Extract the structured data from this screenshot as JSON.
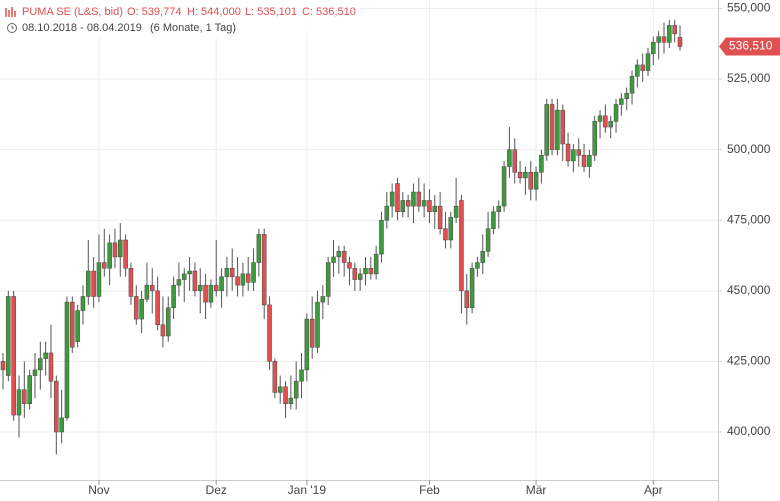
{
  "header": {
    "name": "PUMA SE (L&S, bid)",
    "open": "O: 539,774",
    "high": "H: 544,000",
    "low": "L: 535,101",
    "close": "C: 536,510",
    "range": "08.10.2018 - 08.04.2019",
    "period": "(6 Monate, 1 Tag)"
  },
  "chart_data": {
    "type": "candlestick",
    "up_color": "#3d9a3d",
    "down_color": "#e05050",
    "grid": true,
    "ylim": [
      383000,
      553000
    ],
    "yticks": [
      {
        "value": 400000,
        "label": "400,000"
      },
      {
        "value": 425000,
        "label": "425,000"
      },
      {
        "value": 450000,
        "label": "450,000"
      },
      {
        "value": 475000,
        "label": "475,000"
      },
      {
        "value": 500000,
        "label": "500,000"
      },
      {
        "value": 525000,
        "label": "525,000"
      },
      {
        "value": 550000,
        "label": "550,000"
      }
    ],
    "xticks": [
      {
        "value": 18,
        "label": "Nov"
      },
      {
        "value": 40,
        "label": "Dez"
      },
      {
        "value": 57,
        "label": "Jan '19"
      },
      {
        "value": 80,
        "label": "Feb"
      },
      {
        "value": 100,
        "label": "Mär"
      },
      {
        "value": 122,
        "label": "Apr"
      }
    ],
    "last_price": {
      "value": 536510,
      "label": "536,510"
    },
    "ohlc": [
      [
        425000,
        428000,
        415000,
        422000
      ],
      [
        420000,
        450000,
        418000,
        448000
      ],
      [
        448000,
        450000,
        404000,
        406000
      ],
      [
        406000,
        420000,
        398000,
        415000
      ],
      [
        415000,
        425000,
        405000,
        410000
      ],
      [
        410000,
        422000,
        408000,
        420000
      ],
      [
        420000,
        428000,
        412000,
        422000
      ],
      [
        422000,
        432000,
        415000,
        426000
      ],
      [
        426000,
        432000,
        420000,
        428000
      ],
      [
        428000,
        438000,
        412000,
        418000
      ],
      [
        418000,
        420000,
        392000,
        400000
      ],
      [
        400000,
        415000,
        396000,
        405000
      ],
      [
        405000,
        448000,
        404000,
        446000
      ],
      [
        446000,
        448000,
        428000,
        430000
      ],
      [
        432000,
        445000,
        430000,
        443000
      ],
      [
        443000,
        452000,
        438000,
        448000
      ],
      [
        448000,
        468000,
        445000,
        457000
      ],
      [
        457000,
        462000,
        444000,
        448000
      ],
      [
        448000,
        470000,
        446000,
        460000
      ],
      [
        460000,
        472000,
        455000,
        458000
      ],
      [
        458000,
        470000,
        452000,
        467000
      ],
      [
        467000,
        472000,
        458000,
        462000
      ],
      [
        462000,
        474000,
        455000,
        468000
      ],
      [
        468000,
        470000,
        455000,
        458000
      ],
      [
        458000,
        460000,
        445000,
        448000
      ],
      [
        448000,
        452000,
        438000,
        440000
      ],
      [
        440000,
        450000,
        435000,
        447000
      ],
      [
        447000,
        460000,
        446000,
        452000
      ],
      [
        452000,
        458000,
        442000,
        450000
      ],
      [
        450000,
        455000,
        436000,
        438000
      ],
      [
        438000,
        448000,
        430000,
        434000
      ],
      [
        434000,
        448000,
        432000,
        444000
      ],
      [
        444000,
        455000,
        440000,
        452000
      ],
      [
        452000,
        460000,
        448000,
        454000
      ],
      [
        454000,
        458000,
        446000,
        456000
      ],
      [
        456000,
        462000,
        450000,
        457000
      ],
      [
        457000,
        460000,
        448000,
        450000
      ],
      [
        450000,
        458000,
        442000,
        452000
      ],
      [
        452000,
        456000,
        440000,
        446000
      ],
      [
        446000,
        454000,
        444000,
        452000
      ],
      [
        452000,
        468000,
        448000,
        450000
      ],
      [
        450000,
        458000,
        444000,
        455000
      ],
      [
        455000,
        462000,
        448000,
        458000
      ],
      [
        458000,
        465000,
        450000,
        455000
      ],
      [
        455000,
        462000,
        448000,
        452000
      ],
      [
        452000,
        460000,
        448000,
        456000
      ],
      [
        456000,
        462000,
        450000,
        453000
      ],
      [
        453000,
        465000,
        450000,
        460000
      ],
      [
        460000,
        472000,
        455000,
        470000
      ],
      [
        470000,
        472000,
        440000,
        445000
      ],
      [
        445000,
        448000,
        422000,
        425000
      ],
      [
        425000,
        426000,
        412000,
        414000
      ],
      [
        414000,
        420000,
        410000,
        416000
      ],
      [
        416000,
        418000,
        405000,
        410000
      ],
      [
        410000,
        420000,
        408000,
        412000
      ],
      [
        412000,
        425000,
        408000,
        418000
      ],
      [
        418000,
        428000,
        412000,
        422000
      ],
      [
        422000,
        442000,
        418000,
        440000
      ],
      [
        440000,
        448000,
        426000,
        430000
      ],
      [
        430000,
        450000,
        428000,
        446000
      ],
      [
        446000,
        452000,
        440000,
        448000
      ],
      [
        448000,
        462000,
        445000,
        460000
      ],
      [
        460000,
        468000,
        455000,
        462000
      ],
      [
        462000,
        466000,
        456000,
        464000
      ],
      [
        464000,
        466000,
        455000,
        460000
      ],
      [
        460000,
        462000,
        452000,
        458000
      ],
      [
        458000,
        460000,
        450000,
        454000
      ],
      [
        454000,
        458000,
        450000,
        456000
      ],
      [
        456000,
        462000,
        452000,
        458000
      ],
      [
        458000,
        462000,
        454000,
        456000
      ],
      [
        456000,
        466000,
        454000,
        463000
      ],
      [
        463000,
        478000,
        460000,
        475000
      ],
      [
        475000,
        485000,
        472000,
        480000
      ],
      [
        480000,
        488000,
        476000,
        485000
      ],
      [
        488000,
        490000,
        475000,
        478000
      ],
      [
        478000,
        485000,
        476000,
        482000
      ],
      [
        482000,
        484000,
        476000,
        480000
      ],
      [
        480000,
        488000,
        474000,
        485000
      ],
      [
        485000,
        490000,
        478000,
        480000
      ],
      [
        480000,
        488000,
        476000,
        482000
      ],
      [
        482000,
        486000,
        474000,
        478000
      ],
      [
        478000,
        484000,
        472000,
        480000
      ],
      [
        480000,
        485000,
        470000,
        472000
      ],
      [
        472000,
        478000,
        465000,
        468000
      ],
      [
        468000,
        478000,
        465000,
        476000
      ],
      [
        476000,
        490000,
        474000,
        480000
      ],
      [
        482000,
        484000,
        442000,
        450000
      ],
      [
        450000,
        456000,
        438000,
        444000
      ],
      [
        444000,
        460000,
        442000,
        458000
      ],
      [
        458000,
        462000,
        455000,
        460000
      ],
      [
        460000,
        470000,
        456000,
        464000
      ],
      [
        464000,
        478000,
        462000,
        472000
      ],
      [
        472000,
        480000,
        470000,
        478000
      ],
      [
        478000,
        482000,
        472000,
        480000
      ],
      [
        480000,
        496000,
        478000,
        494000
      ],
      [
        494000,
        508000,
        490000,
        500000
      ],
      [
        500000,
        504000,
        488000,
        492000
      ],
      [
        492000,
        496000,
        488000,
        490000
      ],
      [
        490000,
        494000,
        484000,
        492000
      ],
      [
        492000,
        496000,
        482000,
        486000
      ],
      [
        486000,
        494000,
        482000,
        492000
      ],
      [
        492000,
        500000,
        488000,
        498000
      ],
      [
        498000,
        518000,
        496000,
        516000
      ],
      [
        516000,
        518000,
        498000,
        500000
      ],
      [
        500000,
        518000,
        498000,
        514000
      ],
      [
        514000,
        516000,
        496000,
        502000
      ],
      [
        502000,
        506000,
        494000,
        496000
      ],
      [
        496000,
        502000,
        492000,
        500000
      ],
      [
        500000,
        504000,
        494000,
        498000
      ],
      [
        498000,
        502000,
        492000,
        494000
      ],
      [
        494000,
        500000,
        490000,
        498000
      ],
      [
        498000,
        512000,
        496000,
        510000
      ],
      [
        510000,
        514000,
        504000,
        512000
      ],
      [
        512000,
        516000,
        506000,
        508000
      ],
      [
        508000,
        512000,
        504000,
        510000
      ],
      [
        510000,
        518000,
        506000,
        516000
      ],
      [
        516000,
        520000,
        512000,
        518000
      ],
      [
        518000,
        522000,
        514000,
        520000
      ],
      [
        520000,
        528000,
        516000,
        526000
      ],
      [
        526000,
        532000,
        522000,
        530000
      ],
      [
        530000,
        534000,
        524000,
        528000
      ],
      [
        528000,
        536000,
        526000,
        534000
      ],
      [
        534000,
        540000,
        530000,
        538000
      ],
      [
        538000,
        542000,
        532000,
        540000
      ],
      [
        540000,
        545000,
        534000,
        538000
      ],
      [
        538000,
        546000,
        536000,
        544000
      ],
      [
        544000,
        546000,
        538000,
        541000
      ],
      [
        539774,
        544000,
        535101,
        536510
      ]
    ]
  }
}
